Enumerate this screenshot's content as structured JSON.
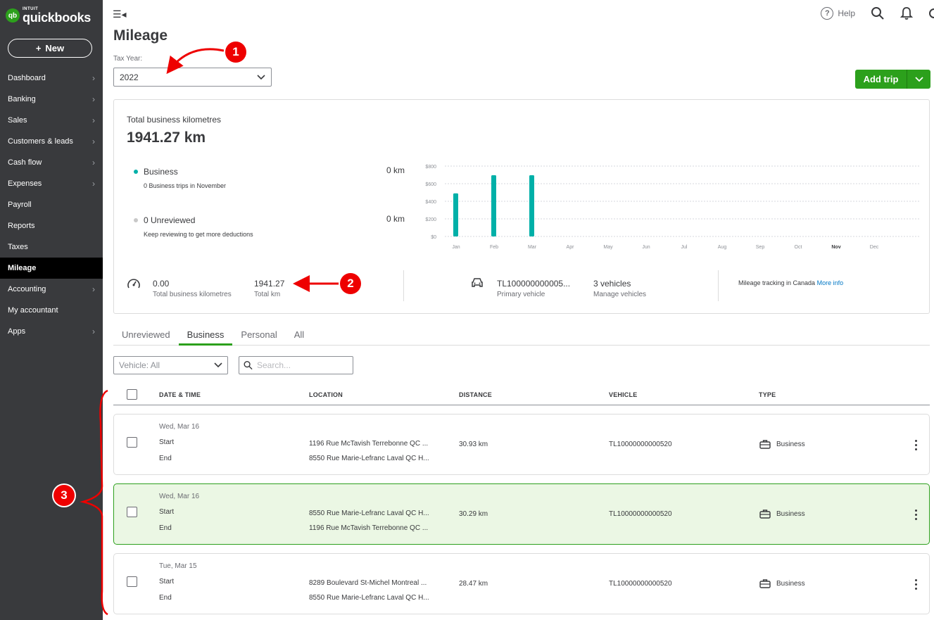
{
  "app": {
    "brand_intuit": "INTUIT",
    "brand_name": "quickbooks",
    "new_label": "New"
  },
  "sidebar": {
    "items": [
      {
        "label": "Dashboard",
        "has_chevron": true
      },
      {
        "label": "Banking",
        "has_chevron": true
      },
      {
        "label": "Sales",
        "has_chevron": true
      },
      {
        "label": "Customers & leads",
        "has_chevron": true
      },
      {
        "label": "Cash flow",
        "has_chevron": true
      },
      {
        "label": "Expenses",
        "has_chevron": true
      },
      {
        "label": "Payroll",
        "has_chevron": false
      },
      {
        "label": "Reports",
        "has_chevron": false
      },
      {
        "label": "Taxes",
        "has_chevron": false
      },
      {
        "label": "Mileage",
        "has_chevron": false,
        "active": true
      },
      {
        "label": "Accounting",
        "has_chevron": true
      },
      {
        "label": "My accountant",
        "has_chevron": false
      },
      {
        "label": "Apps",
        "has_chevron": true
      }
    ]
  },
  "topbar": {
    "help_label": "Help"
  },
  "page": {
    "title": "Mileage",
    "tax_year_label": "Tax Year:",
    "tax_year_value": "2022",
    "add_trip_label": "Add trip"
  },
  "summary": {
    "total_label": "Total business kilometres",
    "total_value": "1941.27 km",
    "business": {
      "name": "Business",
      "value": "0 km",
      "sub": "0 Business trips in November",
      "color": "#00b0a8"
    },
    "unreviewed": {
      "name": "0 Unreviewed",
      "value": "0 km",
      "sub": "Keep reviewing to get more deductions",
      "color": "#c8c8c8"
    },
    "stats": {
      "business_km_value": "0.00",
      "business_km_label": "Total business kilometres",
      "total_km_value": "1941.27",
      "total_km_label": "Total km",
      "vehicle_value": "TL100000000005...",
      "vehicle_label": "Primary vehicle",
      "vehicles_count": "3 vehicles",
      "manage_vehicles": "Manage vehicles",
      "tracking_text": "Mileage tracking in Canada",
      "more_info": "More info"
    }
  },
  "chart_data": {
    "type": "bar",
    "categories": [
      "Jan",
      "Feb",
      "Mar",
      "Apr",
      "May",
      "Jun",
      "Jul",
      "Aug",
      "Sep",
      "Oct",
      "Nov",
      "Dec"
    ],
    "values": [
      510,
      725,
      725,
      0,
      0,
      0,
      0,
      0,
      0,
      0,
      0,
      0
    ],
    "y_ticks": [
      "$800",
      "$600",
      "$400",
      "$200",
      "$0"
    ],
    "ylim": [
      0,
      800
    ],
    "bold_category": "Nov",
    "color": "#00b0a8",
    "grid": true
  },
  "tabs": [
    {
      "label": "Unreviewed",
      "active": false
    },
    {
      "label": "Business",
      "active": true
    },
    {
      "label": "Personal",
      "active": false
    },
    {
      "label": "All",
      "active": false
    }
  ],
  "filters": {
    "vehicle_placeholder": "Vehicle: All",
    "search_placeholder": "Search..."
  },
  "table": {
    "headers": {
      "datetime": "DATE & TIME",
      "location": "LOCATION",
      "distance": "DISTANCE",
      "vehicle": "VEHICLE",
      "type": "TYPE"
    },
    "start_label": "Start",
    "end_label": "End",
    "rows": [
      {
        "date": "Wed, Mar 16",
        "loc_start": "1196 Rue McTavish Terrebonne QC ...",
        "loc_end": "8550 Rue Marie-Lefranc Laval QC H...",
        "distance": "30.93 km",
        "vehicle": "TL10000000000520",
        "type": "Business",
        "highlighted": false
      },
      {
        "date": "Wed, Mar 16",
        "loc_start": "8550 Rue Marie-Lefranc Laval QC H...",
        "loc_end": "1196 Rue McTavish Terrebonne QC ...",
        "distance": "30.29 km",
        "vehicle": "TL10000000000520",
        "type": "Business",
        "highlighted": true
      },
      {
        "date": "Tue, Mar 15",
        "loc_start": "8289 Boulevard St-Michel Montreal ...",
        "loc_end": "8550 Rue Marie-Lefranc Laval QC H...",
        "distance": "28.47 km",
        "vehicle": "TL10000000000520",
        "type": "Business",
        "highlighted": false
      }
    ]
  },
  "annotations": [
    {
      "label": "1",
      "color": "#e00000"
    },
    {
      "label": "2",
      "color": "#e00000"
    },
    {
      "label": "3",
      "color": "#e00000"
    }
  ]
}
